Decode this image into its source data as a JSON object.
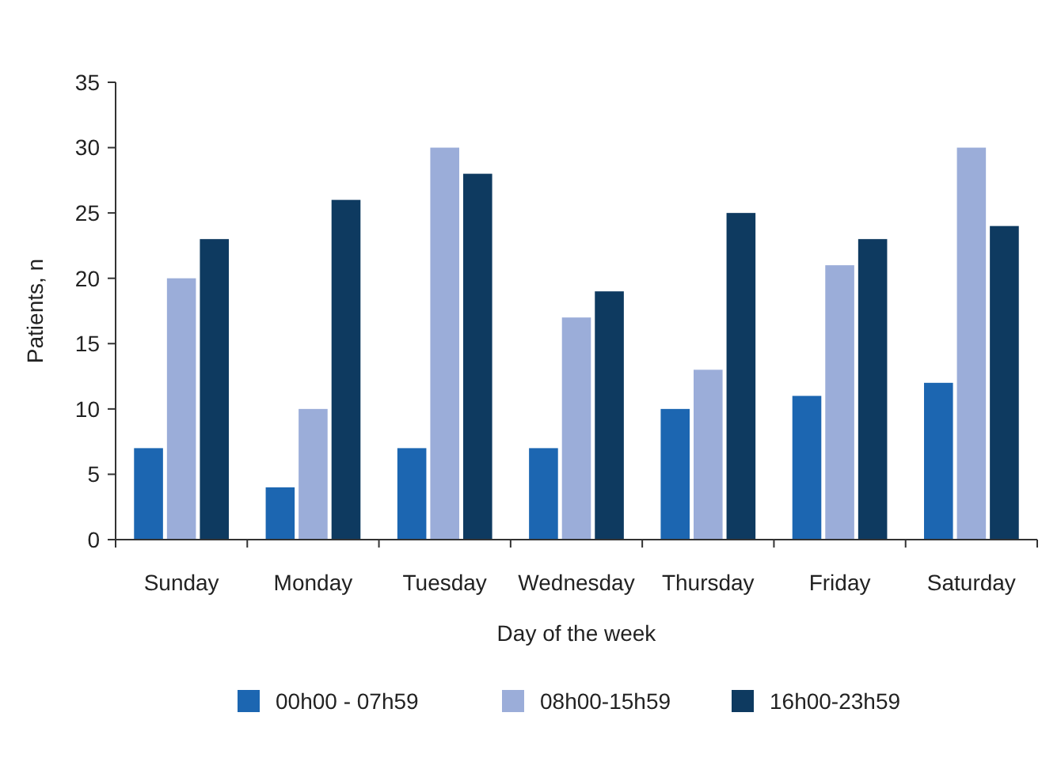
{
  "chart_data": {
    "type": "bar",
    "xlabel": "Day of the week",
    "ylabel": "Patients, n",
    "categories": [
      "Sunday",
      "Monday",
      "Tuesday",
      "Wednesday",
      "Thursday",
      "Friday",
      "Saturday"
    ],
    "series": [
      {
        "name": "00h00 - 07h59",
        "color": "#1c66b1",
        "values": [
          7,
          4,
          7,
          7,
          10,
          11,
          12
        ]
      },
      {
        "name": "08h00-15h59",
        "color": "#9badd9",
        "values": [
          20,
          10,
          30,
          17,
          13,
          21,
          30
        ]
      },
      {
        "name": "16h00-23h59",
        "color": "#0e3a60",
        "values": [
          23,
          26,
          28,
          19,
          25,
          23,
          24
        ]
      }
    ],
    "ylim": [
      0,
      35
    ],
    "yticks": [
      0,
      5,
      10,
      15,
      20,
      25,
      30,
      35
    ],
    "grid": false,
    "legend": "bottom"
  }
}
